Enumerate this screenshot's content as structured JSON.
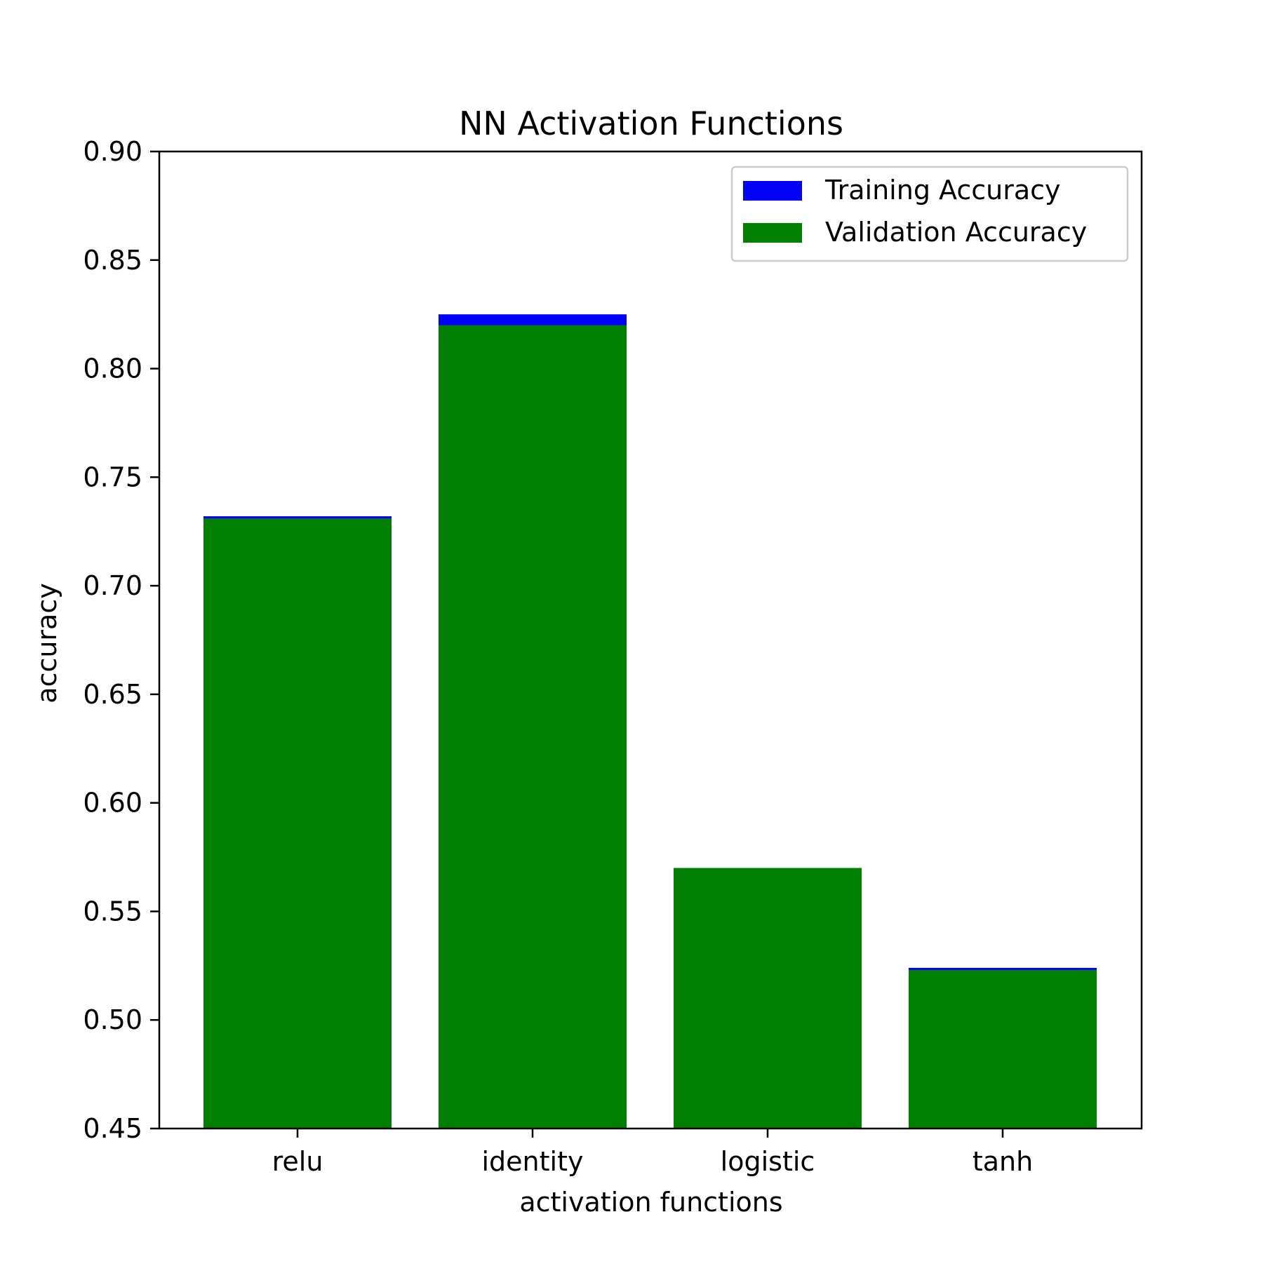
{
  "chart_data": {
    "type": "bar",
    "title": "NN Activation Functions",
    "xlabel": "activation functions",
    "ylabel": "accuracy",
    "categories": [
      "relu",
      "identity",
      "logistic",
      "tanh"
    ],
    "series": [
      {
        "name": "Training Accuracy",
        "values": [
          0.732,
          0.825,
          0.57,
          0.524
        ],
        "color": "#0000ff"
      },
      {
        "name": "Validation Accuracy",
        "values": [
          0.731,
          0.82,
          0.57,
          0.523
        ],
        "color": "#008000"
      }
    ],
    "ylim": [
      0.45,
      0.9
    ],
    "yticks": [
      "0.45",
      "0.50",
      "0.55",
      "0.60",
      "0.65",
      "0.70",
      "0.75",
      "0.80",
      "0.85",
      "0.90"
    ],
    "grid": false,
    "legend_position": "top-right"
  }
}
